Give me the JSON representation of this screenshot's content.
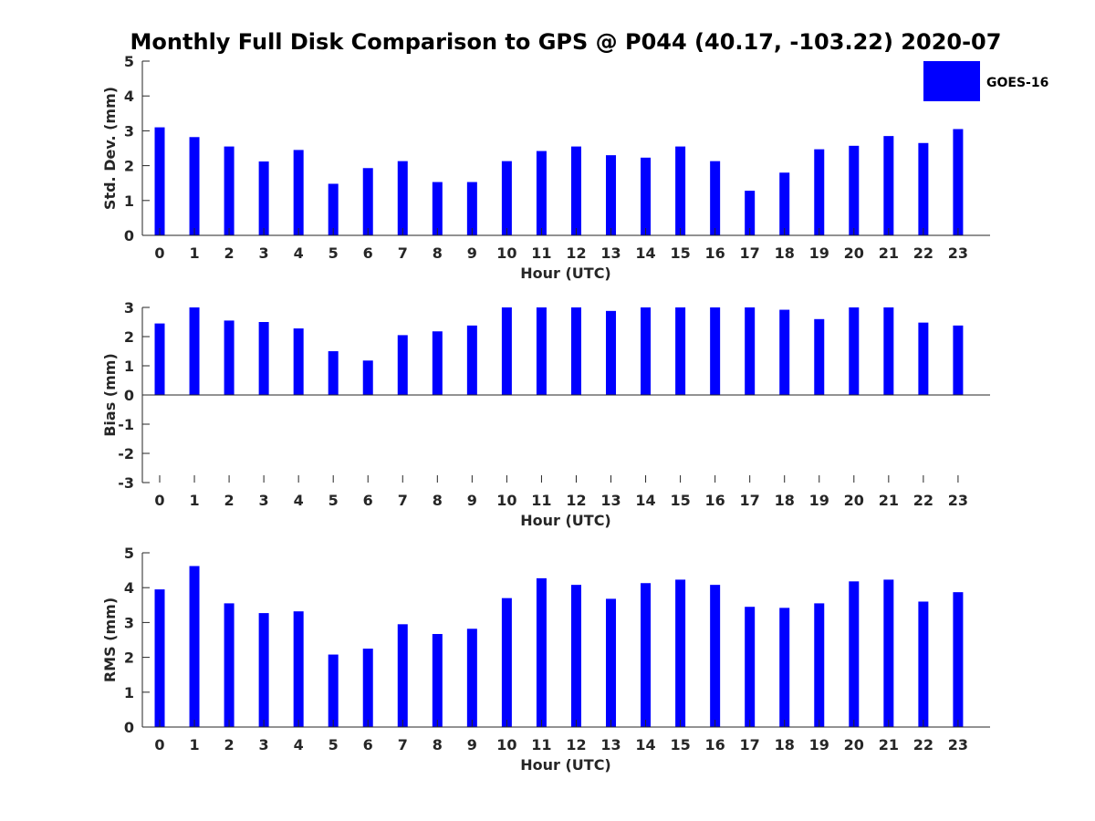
{
  "title": "Monthly Full Disk Comparison to GPS @ P044 (40.17, -103.22) 2020-07",
  "legend": {
    "label": "GOES-16",
    "color": "#0000ff"
  },
  "chart_data": [
    {
      "type": "bar",
      "xlabel": "Hour (UTC)",
      "ylabel": "Std. Dev. (mm)",
      "ylim": [
        0,
        5
      ],
      "yticks": [
        0,
        1,
        2,
        3,
        4,
        5
      ],
      "categories": [
        0,
        1,
        2,
        3,
        4,
        5,
        6,
        7,
        8,
        9,
        10,
        11,
        12,
        13,
        14,
        15,
        16,
        17,
        18,
        19,
        20,
        21,
        22,
        23
      ],
      "series": [
        {
          "name": "GOES-16",
          "values": [
            3.1,
            2.82,
            2.55,
            2.12,
            2.45,
            1.48,
            1.93,
            2.13,
            1.53,
            1.53,
            2.13,
            2.42,
            2.55,
            2.3,
            2.23,
            2.55,
            2.13,
            1.28,
            1.8,
            2.47,
            2.57,
            2.85,
            2.65,
            3.05
          ]
        }
      ]
    },
    {
      "type": "bar",
      "xlabel": "Hour (UTC)",
      "ylabel": "Bias (mm)",
      "ylim": [
        -3,
        3
      ],
      "yticks": [
        -3,
        -2,
        -1,
        0,
        1,
        2,
        3
      ],
      "categories": [
        0,
        1,
        2,
        3,
        4,
        5,
        6,
        7,
        8,
        9,
        10,
        11,
        12,
        13,
        14,
        15,
        16,
        17,
        18,
        19,
        20,
        21,
        22,
        23
      ],
      "series": [
        {
          "name": "GOES-16",
          "values": [
            2.45,
            3.0,
            2.55,
            2.5,
            2.28,
            1.5,
            1.18,
            2.05,
            2.18,
            2.38,
            3.0,
            3.0,
            3.0,
            2.88,
            3.0,
            3.0,
            3.0,
            3.0,
            2.92,
            2.6,
            3.0,
            3.0,
            2.48,
            2.38
          ]
        }
      ]
    },
    {
      "type": "bar",
      "xlabel": "Hour (UTC)",
      "ylabel": "RMS (mm)",
      "ylim": [
        0,
        5
      ],
      "yticks": [
        0,
        1,
        2,
        3,
        4,
        5
      ],
      "categories": [
        0,
        1,
        2,
        3,
        4,
        5,
        6,
        7,
        8,
        9,
        10,
        11,
        12,
        13,
        14,
        15,
        16,
        17,
        18,
        19,
        20,
        21,
        22,
        23
      ],
      "series": [
        {
          "name": "GOES-16",
          "values": [
            3.95,
            4.62,
            3.55,
            3.27,
            3.32,
            2.08,
            2.25,
            2.95,
            2.67,
            2.82,
            3.7,
            4.27,
            4.08,
            3.68,
            4.13,
            4.23,
            4.08,
            3.45,
            3.42,
            3.55,
            4.18,
            4.23,
            3.6,
            3.87
          ]
        }
      ]
    }
  ]
}
